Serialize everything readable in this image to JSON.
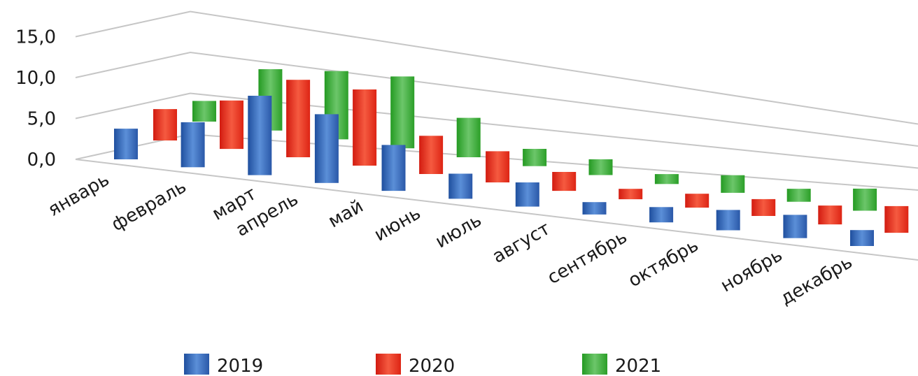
{
  "chart_data": {
    "type": "bar",
    "style": "3d-floating-column",
    "categories": [
      "январь",
      "февраль",
      "март",
      "апрель",
      "май",
      "июнь",
      "июль",
      "август",
      "сентябрь",
      "октябрь",
      "ноябрь",
      "декабрь"
    ],
    "series": [
      {
        "name": "2019",
        "color": "#2f5fb0",
        "values": [
          4.3,
          6.6,
          12.2,
          11.1,
          7.8,
          4.5,
          4.6,
          2.5,
          3.3,
          4.7,
          5.8,
          4.3
        ]
      },
      {
        "name": "2020",
        "color": "#e8291c",
        "values": [
          4.4,
          7.1,
          11.9,
          12.3,
          6.5,
          5.6,
          3.6,
          2.1,
          3.0,
          3.9,
          4.7,
          7.2
        ]
      },
      {
        "name": "2021",
        "color": "#33a532",
        "values": [
          2.9,
          9.0,
          10.5,
          11.6,
          6.7,
          3.1,
          3.0,
          2.0,
          3.8,
          3.0,
          5.5,
          6.3
        ]
      }
    ],
    "yticks": [
      "0,0",
      "5,0",
      "10,0",
      "15,0"
    ],
    "ylim": [
      0,
      15
    ],
    "grid": true,
    "legend_position": "bottom"
  }
}
